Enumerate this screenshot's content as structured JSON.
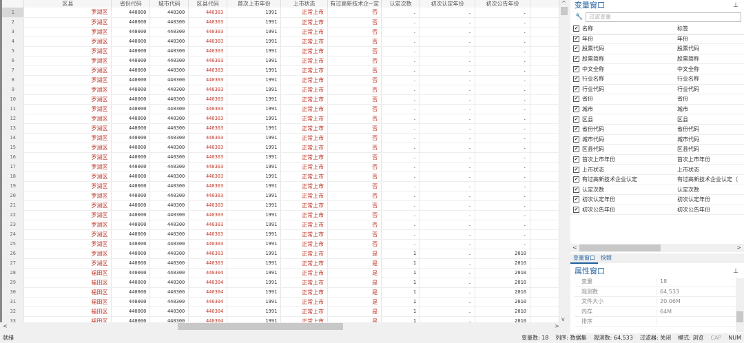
{
  "grid": {
    "columns": [
      "",
      "区县",
      "省份代码",
      "城市代码",
      "区县代码",
      "首次上市年份",
      "上市状态",
      "有过高新技术企~定",
      "认定次数",
      "初次认定年份",
      "初次公告年份",
      ""
    ],
    "rows": [
      [
        "1",
        "罗湖区",
        "440000",
        "440300",
        "440303",
        "1991",
        "正常上市",
        "否",
        ".",
        ".",
        "."
      ],
      [
        "2",
        "罗湖区",
        "440000",
        "440300",
        "440303",
        "1991",
        "正常上市",
        "否",
        ".",
        ".",
        "."
      ],
      [
        "3",
        "罗湖区",
        "440000",
        "440300",
        "440303",
        "1991",
        "正常上市",
        "否",
        ".",
        ".",
        "."
      ],
      [
        "4",
        "罗湖区",
        "440000",
        "440300",
        "440303",
        "1991",
        "正常上市",
        "否",
        ".",
        ".",
        "."
      ],
      [
        "5",
        "罗湖区",
        "440000",
        "440300",
        "440303",
        "1991",
        "正常上市",
        "否",
        ".",
        ".",
        "."
      ],
      [
        "6",
        "罗湖区",
        "440000",
        "440300",
        "440303",
        "1991",
        "正常上市",
        "否",
        ".",
        ".",
        "."
      ],
      [
        "7",
        "罗湖区",
        "440000",
        "440300",
        "440303",
        "1991",
        "正常上市",
        "否",
        ".",
        ".",
        "."
      ],
      [
        "8",
        "罗湖区",
        "440000",
        "440300",
        "440303",
        "1991",
        "正常上市",
        "否",
        ".",
        ".",
        "."
      ],
      [
        "9",
        "罗湖区",
        "440000",
        "440300",
        "440303",
        "1991",
        "正常上市",
        "否",
        ".",
        ".",
        "."
      ],
      [
        "10",
        "罗湖区",
        "440000",
        "440300",
        "440303",
        "1991",
        "正常上市",
        "否",
        ".",
        ".",
        "."
      ],
      [
        "11",
        "罗湖区",
        "440000",
        "440300",
        "440303",
        "1991",
        "正常上市",
        "否",
        ".",
        ".",
        "."
      ],
      [
        "12",
        "罗湖区",
        "440000",
        "440300",
        "440303",
        "1991",
        "正常上市",
        "否",
        ".",
        ".",
        "."
      ],
      [
        "13",
        "罗湖区",
        "440000",
        "440300",
        "440303",
        "1991",
        "正常上市",
        "否",
        ".",
        ".",
        "."
      ],
      [
        "14",
        "罗湖区",
        "440000",
        "440300",
        "440303",
        "1991",
        "正常上市",
        "否",
        ".",
        ".",
        "."
      ],
      [
        "15",
        "罗湖区",
        "440000",
        "440300",
        "440303",
        "1991",
        "正常上市",
        "否",
        ".",
        ".",
        "."
      ],
      [
        "16",
        "罗湖区",
        "440000",
        "440300",
        "440303",
        "1991",
        "正常上市",
        "否",
        ".",
        ".",
        "."
      ],
      [
        "17",
        "罗湖区",
        "440000",
        "440300",
        "440303",
        "1991",
        "正常上市",
        "否",
        ".",
        ".",
        "."
      ],
      [
        "18",
        "罗湖区",
        "440000",
        "440300",
        "440303",
        "1991",
        "正常上市",
        "否",
        ".",
        ".",
        "."
      ],
      [
        "19",
        "罗湖区",
        "440000",
        "440300",
        "440303",
        "1991",
        "正常上市",
        "否",
        ".",
        ".",
        "."
      ],
      [
        "20",
        "罗湖区",
        "440000",
        "440300",
        "440303",
        "1991",
        "正常上市",
        "否",
        ".",
        ".",
        "."
      ],
      [
        "21",
        "罗湖区",
        "440000",
        "440300",
        "440303",
        "1991",
        "正常上市",
        "否",
        ".",
        ".",
        "."
      ],
      [
        "22",
        "罗湖区",
        "440000",
        "440300",
        "440303",
        "1991",
        "正常上市",
        "否",
        ".",
        ".",
        "."
      ],
      [
        "23",
        "罗湖区",
        "440000",
        "440300",
        "440303",
        "1991",
        "正常上市",
        "否",
        ".",
        ".",
        "."
      ],
      [
        "24",
        "罗湖区",
        "440000",
        "440300",
        "440303",
        "1991",
        "正常上市",
        "否",
        ".",
        ".",
        "."
      ],
      [
        "25",
        "罗湖区",
        "440000",
        "440300",
        "440303",
        "1991",
        "正常上市",
        "否",
        ".",
        ".",
        "."
      ],
      [
        "26",
        "罗湖区",
        "440000",
        "440300",
        "440303",
        "1991",
        "正常上市",
        "是",
        "1",
        ".",
        "2010"
      ],
      [
        "27",
        "罗湖区",
        "440000",
        "440300",
        "440303",
        "1991",
        "正常上市",
        "是",
        "1",
        ".",
        "2010"
      ],
      [
        "28",
        "福田区",
        "440000",
        "440300",
        "440304",
        "1991",
        "正常上市",
        "是",
        "1",
        ".",
        "2010"
      ],
      [
        "29",
        "福田区",
        "440000",
        "440300",
        "440304",
        "1991",
        "正常上市",
        "是",
        "1",
        ".",
        "2010"
      ],
      [
        "30",
        "福田区",
        "440000",
        "440300",
        "440304",
        "1991",
        "正常上市",
        "是",
        "1",
        ".",
        "2010"
      ],
      [
        "31",
        "福田区",
        "440000",
        "440300",
        "440304",
        "1991",
        "正常上市",
        "是",
        "1",
        ".",
        "2010"
      ],
      [
        "32",
        "福田区",
        "440000",
        "440300",
        "440304",
        "1991",
        "正常上市",
        "是",
        "1",
        ".",
        "2010"
      ],
      [
        "33",
        "福田区",
        "440000",
        "440300",
        "440304",
        "1991",
        "正常上市",
        "是",
        "1",
        ".",
        "2010"
      ]
    ]
  },
  "variables": {
    "title": "变量窗口",
    "filter_placeholder": "过滤变量",
    "header": {
      "name": "名称",
      "label": "标签"
    },
    "items": [
      {
        "name": "年份",
        "label": "年份"
      },
      {
        "name": "股票代码",
        "label": "股票代码"
      },
      {
        "name": "股票简称",
        "label": "股票简称"
      },
      {
        "name": "中文全称",
        "label": "中文全称"
      },
      {
        "name": "行业名称",
        "label": "行业名称"
      },
      {
        "name": "行业代码",
        "label": "行业代码"
      },
      {
        "name": "省份",
        "label": "省份"
      },
      {
        "name": "城市",
        "label": "城市"
      },
      {
        "name": "区县",
        "label": "区县"
      },
      {
        "name": "省份代码",
        "label": "省份代码"
      },
      {
        "name": "城市代码",
        "label": "城市代码"
      },
      {
        "name": "区县代码",
        "label": "区县代码"
      },
      {
        "name": "首次上市年份",
        "label": "首次上市年份"
      },
      {
        "name": "上市状态",
        "label": "上市状态"
      },
      {
        "name": "有过高新技术企业认定",
        "label": "有过高新技术企业认定（"
      },
      {
        "name": "认定次数",
        "label": "认定次数"
      },
      {
        "name": "初次认定年份",
        "label": "初次认定年份"
      },
      {
        "name": "初次公告年份",
        "label": "初次公告年份"
      }
    ],
    "tabs": [
      "变量窗口",
      "快照"
    ]
  },
  "properties": {
    "title": "属性窗口",
    "rows": [
      {
        "key": "变量",
        "value": "18"
      },
      {
        "key": "观测数",
        "value": "64,533"
      },
      {
        "key": "文件大小",
        "value": "20.06M"
      },
      {
        "key": "内存",
        "value": "64M"
      },
      {
        "key": "排序",
        "value": ""
      }
    ]
  },
  "status": {
    "ready": "就绪",
    "var_count": "变量数: 18",
    "order": "列序: 数据集",
    "obs": "观测数: 64,533",
    "filter": "过滤器: 关闭",
    "mode": "模式: 浏览",
    "cap": "CAP",
    "num": "NUM"
  },
  "colors": {
    "accent": "#1e5f9e",
    "value_red": "#c0392b"
  }
}
